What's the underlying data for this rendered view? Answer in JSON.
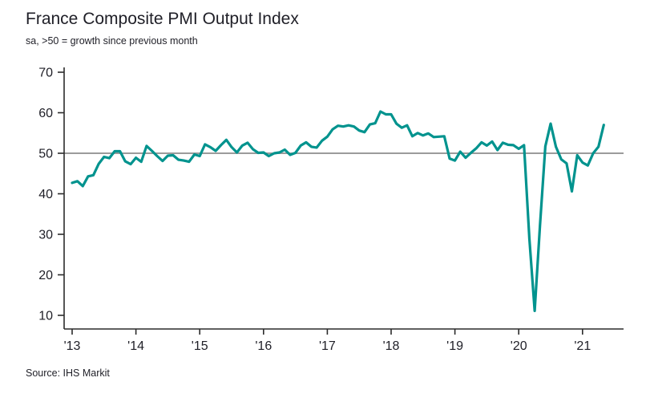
{
  "title": "France Composite PMI Output Index",
  "subtitle": "sa, >50 = growth since previous month",
  "source": "Source: IHS Markit",
  "colors": {
    "line": "#00938e",
    "axis": "#2b2b2b",
    "reference_line": "#9b9b9b",
    "text": "#1f1f27"
  },
  "chart_data": {
    "type": "line",
    "title": "France Composite PMI Output Index",
    "subtitle": "sa, >50 = growth since previous month",
    "source": "Source: IHS Markit",
    "x_unit": "month",
    "start": "2013-01",
    "end": "2021-05",
    "x_tick_labels": [
      "'13",
      "'14",
      "'15",
      "'16",
      "'17",
      "'18",
      "'19",
      "'20",
      "'21"
    ],
    "ylim": [
      10,
      70
    ],
    "y_ticks": [
      10,
      20,
      30,
      40,
      50,
      60,
      70
    ],
    "reference_line": 50,
    "grid": "off",
    "legend": "none",
    "series": [
      {
        "name": "France Composite PMI Output Index",
        "color": "#00938e",
        "values": [
          42.7,
          43.1,
          41.9,
          44.3,
          44.6,
          47.4,
          49.1,
          48.8,
          50.5,
          50.5,
          48.0,
          47.3,
          48.9,
          47.9,
          51.8,
          50.6,
          49.3,
          48.1,
          49.4,
          49.5,
          48.4,
          48.2,
          47.9,
          49.7,
          49.3,
          52.2,
          51.5,
          50.6,
          52.0,
          53.3,
          51.5,
          50.2,
          51.9,
          52.6,
          51.0,
          50.1,
          50.2,
          49.3,
          50.0,
          50.2,
          50.9,
          49.6,
          50.1,
          51.9,
          52.7,
          51.6,
          51.4,
          53.1,
          54.1,
          55.9,
          56.8,
          56.6,
          56.9,
          56.6,
          55.6,
          55.2,
          57.1,
          57.4,
          60.3,
          59.6,
          59.6,
          57.3,
          56.3,
          56.9,
          54.2,
          55.0,
          54.4,
          54.9,
          54.0,
          54.1,
          54.2,
          48.7,
          48.2,
          50.4,
          48.9,
          50.1,
          51.2,
          52.7,
          51.9,
          52.9,
          50.8,
          52.6,
          52.1,
          52.0,
          51.1,
          52.0,
          28.9,
          11.1,
          32.1,
          51.7,
          57.3,
          51.6,
          48.5,
          47.5,
          40.6,
          49.5,
          47.7,
          47.0,
          50.0,
          51.6,
          57.0
        ]
      }
    ]
  }
}
